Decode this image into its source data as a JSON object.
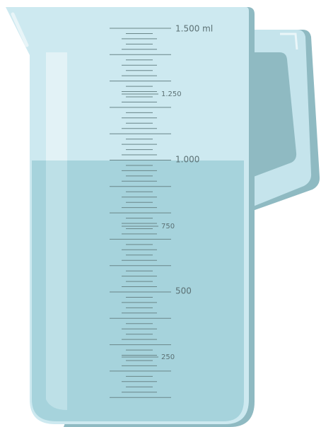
{
  "scale": {
    "labels": [
      "1.500 ml",
      "1.250",
      "1.000",
      "750",
      "500",
      "250"
    ]
  }
}
